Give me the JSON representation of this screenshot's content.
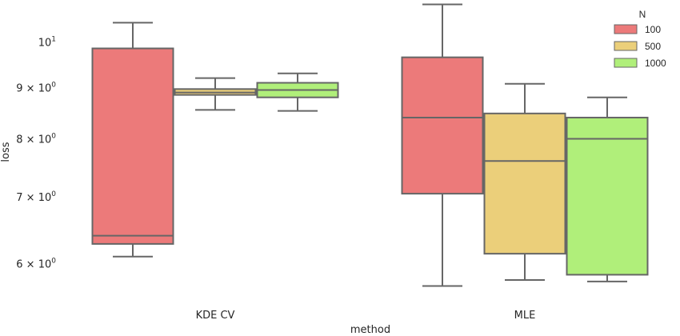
{
  "chart_data": {
    "type": "box",
    "xlabel": "method",
    "ylabel": "loss",
    "yscale": "log",
    "ylim": [
      5.55,
      10.85
    ],
    "categories": [
      "KDE CV",
      "MLE"
    ],
    "yticks": [
      {
        "value": 6,
        "base": "6 × 10",
        "exp": "0"
      },
      {
        "value": 7,
        "base": "7 × 10",
        "exp": "0"
      },
      {
        "value": 8,
        "base": "8 × 10",
        "exp": "0"
      },
      {
        "value": 9,
        "base": "9 × 10",
        "exp": "0"
      },
      {
        "value": 10,
        "base": "10",
        "exp": "1"
      }
    ],
    "legend": {
      "title": "N",
      "position": "top-right"
    },
    "series": [
      {
        "name": "100",
        "color": "#ec7a7a",
        "boxes": [
          {
            "whislo": 6.1,
            "q1": 6.28,
            "med": 6.4,
            "q3": 9.85,
            "whishi": 10.45
          },
          {
            "whislo": 5.7,
            "q1": 7.05,
            "med": 8.4,
            "q3": 9.65,
            "whishi": 10.9
          }
        ]
      },
      {
        "name": "500",
        "color": "#ebcf7a",
        "boxes": [
          {
            "whislo": 8.55,
            "q1": 8.85,
            "med": 8.9,
            "q3": 8.97,
            "whishi": 9.2
          },
          {
            "whislo": 5.78,
            "q1": 6.14,
            "med": 7.6,
            "q3": 8.48,
            "whishi": 9.08
          }
        ]
      },
      {
        "name": "1000",
        "color": "#b0ef7a",
        "boxes": [
          {
            "whislo": 8.53,
            "q1": 8.8,
            "med": 8.95,
            "q3": 9.1,
            "whishi": 9.3
          },
          {
            "whislo": 5.76,
            "q1": 5.85,
            "med": 8.0,
            "q3": 8.4,
            "whishi": 8.8
          }
        ]
      }
    ]
  }
}
